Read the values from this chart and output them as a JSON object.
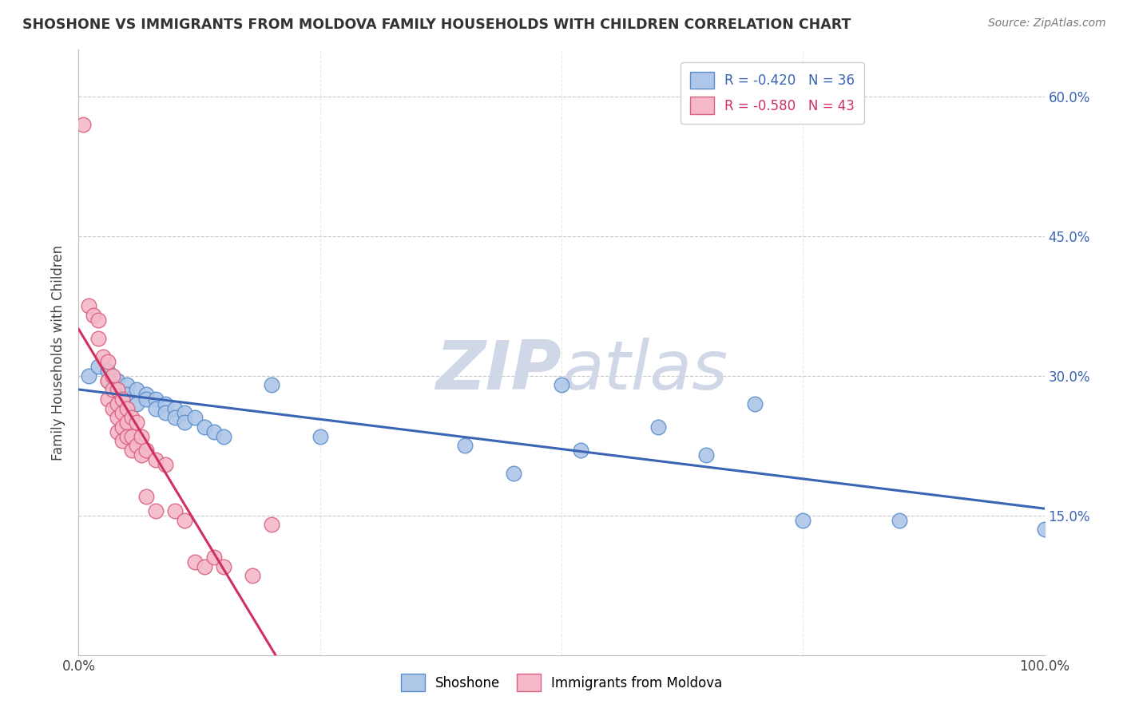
{
  "title": "SHOSHONE VS IMMIGRANTS FROM MOLDOVA FAMILY HOUSEHOLDS WITH CHILDREN CORRELATION CHART",
  "source": "Source: ZipAtlas.com",
  "ylabel": "Family Households with Children",
  "xlim": [
    0.0,
    1.0
  ],
  "ylim": [
    0.0,
    0.65
  ],
  "x_ticks": [
    0.0,
    0.25,
    0.5,
    0.75,
    1.0
  ],
  "y_ticks": [
    0.15,
    0.3,
    0.45,
    0.6
  ],
  "y_tick_labels": [
    "15.0%",
    "30.0%",
    "45.0%",
    "60.0%"
  ],
  "legend_r_entries": [
    {
      "label": "R = -0.420   N = 36"
    },
    {
      "label": "R = -0.580   N = 43"
    }
  ],
  "shoshone_color": "#aec6e8",
  "shoshone_edge": "#5b8fcc",
  "moldova_color": "#f4b8c8",
  "moldova_edge": "#d96080",
  "shoshone_line_color": "#3a65b5",
  "moldova_line_color": "#d03060",
  "watermark_color": "#d0d8e8",
  "grid_color": "#c8c8c8",
  "shoshone_points": [
    [
      0.01,
      0.3
    ],
    [
      0.02,
      0.31
    ],
    [
      0.03,
      0.305
    ],
    [
      0.03,
      0.295
    ],
    [
      0.04,
      0.295
    ],
    [
      0.04,
      0.285
    ],
    [
      0.05,
      0.29
    ],
    [
      0.05,
      0.28
    ],
    [
      0.06,
      0.285
    ],
    [
      0.06,
      0.27
    ],
    [
      0.07,
      0.28
    ],
    [
      0.07,
      0.275
    ],
    [
      0.08,
      0.275
    ],
    [
      0.08,
      0.265
    ],
    [
      0.09,
      0.27
    ],
    [
      0.09,
      0.26
    ],
    [
      0.1,
      0.265
    ],
    [
      0.1,
      0.255
    ],
    [
      0.11,
      0.26
    ],
    [
      0.11,
      0.25
    ],
    [
      0.12,
      0.255
    ],
    [
      0.13,
      0.245
    ],
    [
      0.14,
      0.24
    ],
    [
      0.15,
      0.235
    ],
    [
      0.2,
      0.29
    ],
    [
      0.25,
      0.235
    ],
    [
      0.4,
      0.225
    ],
    [
      0.45,
      0.195
    ],
    [
      0.5,
      0.29
    ],
    [
      0.52,
      0.22
    ],
    [
      0.6,
      0.245
    ],
    [
      0.65,
      0.215
    ],
    [
      0.7,
      0.27
    ],
    [
      0.75,
      0.145
    ],
    [
      0.85,
      0.145
    ],
    [
      1.0,
      0.135
    ]
  ],
  "moldova_points": [
    [
      0.005,
      0.57
    ],
    [
      0.01,
      0.375
    ],
    [
      0.015,
      0.365
    ],
    [
      0.02,
      0.36
    ],
    [
      0.02,
      0.34
    ],
    [
      0.025,
      0.32
    ],
    [
      0.03,
      0.315
    ],
    [
      0.03,
      0.295
    ],
    [
      0.03,
      0.275
    ],
    [
      0.035,
      0.3
    ],
    [
      0.035,
      0.285
    ],
    [
      0.035,
      0.265
    ],
    [
      0.04,
      0.285
    ],
    [
      0.04,
      0.27
    ],
    [
      0.04,
      0.255
    ],
    [
      0.04,
      0.24
    ],
    [
      0.045,
      0.275
    ],
    [
      0.045,
      0.26
    ],
    [
      0.045,
      0.245
    ],
    [
      0.045,
      0.23
    ],
    [
      0.05,
      0.265
    ],
    [
      0.05,
      0.25
    ],
    [
      0.05,
      0.235
    ],
    [
      0.055,
      0.255
    ],
    [
      0.055,
      0.235
    ],
    [
      0.055,
      0.22
    ],
    [
      0.06,
      0.25
    ],
    [
      0.06,
      0.225
    ],
    [
      0.065,
      0.235
    ],
    [
      0.065,
      0.215
    ],
    [
      0.07,
      0.22
    ],
    [
      0.07,
      0.17
    ],
    [
      0.08,
      0.21
    ],
    [
      0.08,
      0.155
    ],
    [
      0.09,
      0.205
    ],
    [
      0.1,
      0.155
    ],
    [
      0.11,
      0.145
    ],
    [
      0.12,
      0.1
    ],
    [
      0.13,
      0.095
    ],
    [
      0.14,
      0.105
    ],
    [
      0.15,
      0.095
    ],
    [
      0.18,
      0.085
    ],
    [
      0.2,
      0.14
    ]
  ]
}
